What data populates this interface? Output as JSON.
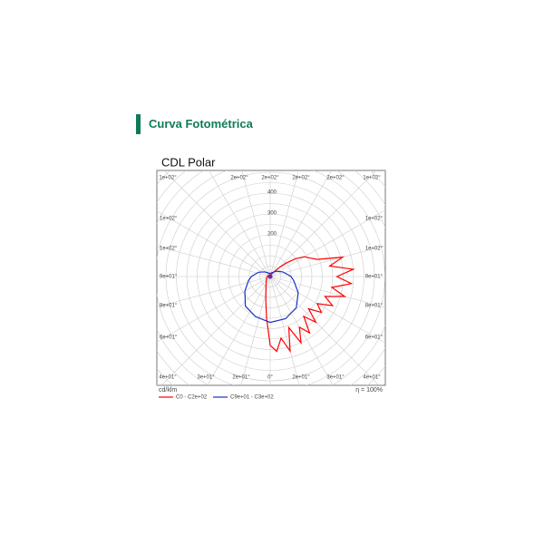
{
  "header": {
    "title": "Curva Fotométrica"
  },
  "chart_data": {
    "type": "polar",
    "title": "CDL Polar",
    "unit_label": "cd/klm",
    "efficiency_label": "η = 100%",
    "rlim": [
      0,
      800
    ],
    "rticks": [
      200,
      300,
      400
    ],
    "rgrid": [
      50,
      100,
      150,
      200,
      250,
      300,
      350,
      400,
      450,
      500,
      550,
      600,
      650,
      700,
      750,
      800
    ],
    "angle_labels_top": [
      "1e+02°",
      "2e+02°",
      "2e+02°",
      "2e+02°",
      "2e+02°",
      "1e+02°"
    ],
    "angle_labels_left": [
      "1e+02°",
      "1e+02°",
      "9e+01°",
      "8e+01°",
      "6e+01°"
    ],
    "angle_labels_right": [
      "1e+02°",
      "1e+02°",
      "9e+01°",
      "8e+01°",
      "6e+01°"
    ],
    "angle_labels_bottom": [
      "4e+01°",
      "3e+01°",
      "2e+01°",
      "0°",
      "2e+01°",
      "3e+01°",
      "4e+01°"
    ],
    "series": [
      {
        "name": "C0 - C2e+02",
        "color": "#ff0000",
        "angles": [
          -180,
          -150,
          -120,
          -90,
          -60,
          -40,
          -20,
          -10,
          -5,
          0,
          5,
          10,
          15,
          20,
          25,
          30,
          35,
          40,
          45,
          50,
          55,
          60,
          65,
          70,
          75,
          80,
          85,
          90,
          95,
          100,
          105,
          110,
          115,
          120,
          125,
          130,
          135,
          140,
          150,
          165,
          180
        ],
        "values": [
          10,
          10,
          10,
          15,
          20,
          30,
          60,
          120,
          200,
          330,
          360,
          300,
          370,
          260,
          350,
          280,
          330,
          250,
          310,
          240,
          300,
          260,
          330,
          280,
          370,
          300,
          390,
          320,
          400,
          290,
          360,
          240,
          210,
          190,
          150,
          100,
          60,
          30,
          15,
          10,
          10
        ]
      },
      {
        "name": "C9e+01 - C3e+02",
        "color": "#1a2ecc",
        "angles": [
          -180,
          -150,
          -130,
          -110,
          -90,
          -80,
          -60,
          -40,
          -20,
          0,
          20,
          40,
          60,
          80,
          90,
          110,
          130,
          150,
          180
        ],
        "values": [
          15,
          20,
          35,
          60,
          90,
          105,
          140,
          185,
          205,
          220,
          215,
          195,
          155,
          115,
          100,
          65,
          40,
          22,
          15
        ]
      }
    ]
  }
}
